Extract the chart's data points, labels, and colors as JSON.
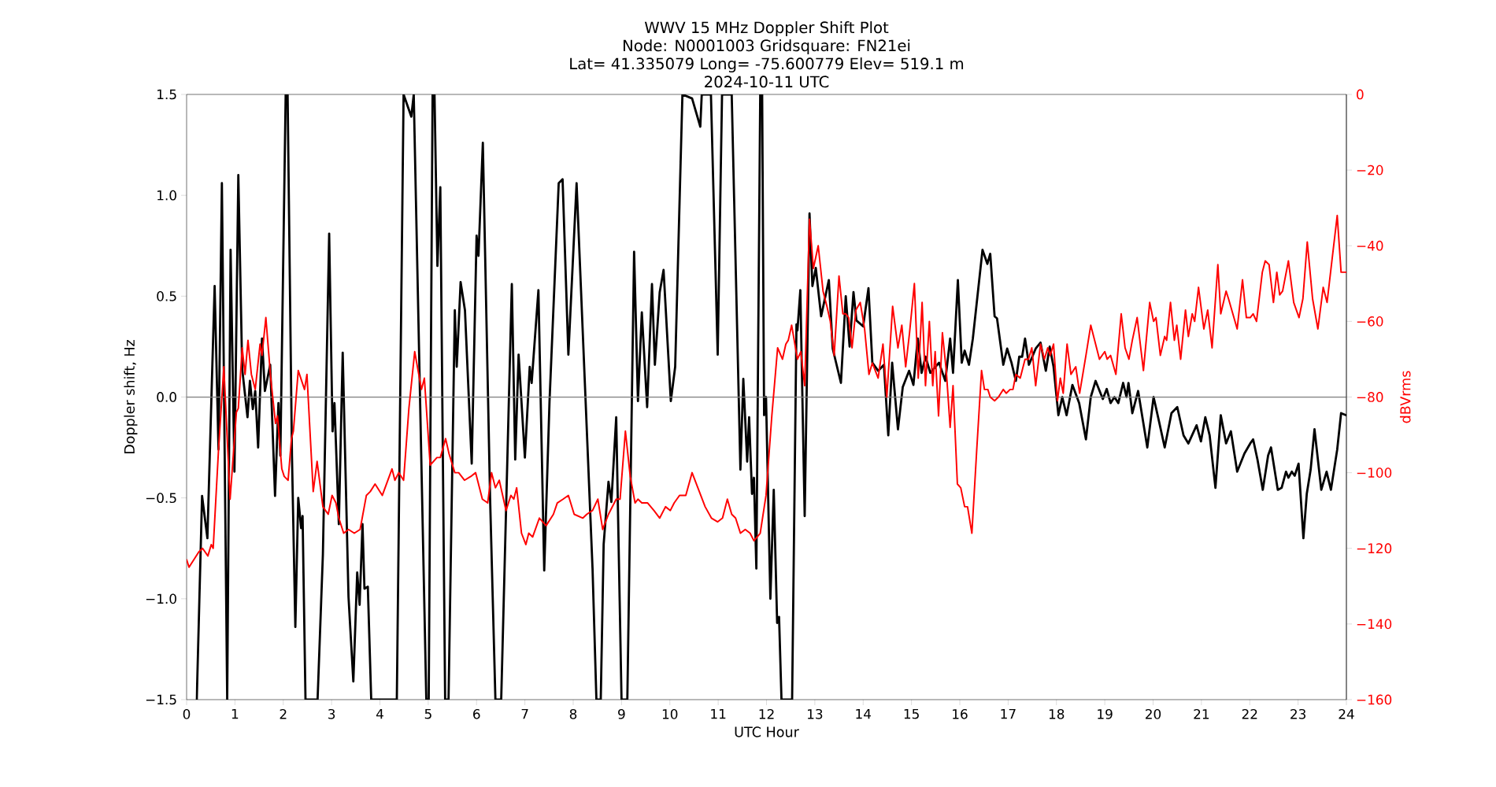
{
  "chart_data": {
    "type": "line",
    "title": "WWV 15 MHz Doppler Shift Plot",
    "subtitle": "Node:  N0001003     Gridsquare:  FN21ei",
    "annotations": [
      "Lat= 41.335079    Long= -75.600779    Elev= 519.1 m",
      "2024-10-11  UTC"
    ],
    "xlabel": "UTC Hour",
    "ylabel": "Doppler shift, Hz",
    "y2label": "dBVrms",
    "xlim": [
      0,
      24
    ],
    "xticks": [
      0,
      1,
      2,
      3,
      4,
      5,
      6,
      7,
      8,
      9,
      10,
      11,
      12,
      13,
      14,
      15,
      16,
      17,
      18,
      19,
      20,
      21,
      22,
      23,
      24
    ],
    "ylim": [
      -1.5,
      1.5
    ],
    "yticks": [
      {
        "value": -1.5,
        "label": "−1.5"
      },
      {
        "value": -1.0,
        "label": "−1.0"
      },
      {
        "value": -0.5,
        "label": "−0.5"
      },
      {
        "value": 0,
        "label": "0.0"
      },
      {
        "value": 0.5,
        "label": "0.5"
      },
      {
        "value": 1.0,
        "label": "1.0"
      },
      {
        "value": 1.5,
        "label": "1.5"
      }
    ],
    "y2lim": [
      -160,
      0
    ],
    "y2ticks": [
      {
        "value": -160,
        "label": "−160"
      },
      {
        "value": -140,
        "label": "−140"
      },
      {
        "value": -120,
        "label": "−120"
      },
      {
        "value": -100,
        "label": "−100"
      },
      {
        "value": -80,
        "label": "−80"
      },
      {
        "value": -60,
        "label": "−60"
      },
      {
        "value": -40,
        "label": "−40"
      },
      {
        "value": -20,
        "label": "−20"
      },
      0
    ],
    "line_style": "solid",
    "ref_lines": [
      {
        "axis": "y",
        "value": 0,
        "color": "#808080"
      }
    ],
    "series": [
      {
        "color": "#000000",
        "x": [
          0.21,
          0.32,
          0.43,
          0.58,
          0.66,
          0.73,
          0.84,
          0.91,
          0.99,
          1.07,
          1.15,
          1.26,
          1.31,
          1.37,
          1.42,
          1.48,
          1.56,
          1.62,
          1.73,
          1.83,
          1.9,
          1.94,
          2.05,
          2.09,
          2.18,
          2.25,
          2.31,
          2.37,
          2.4,
          2.46,
          2.71,
          2.82,
          2.95,
          3.02,
          3.06,
          3.15,
          3.23,
          3.35,
          3.45,
          3.53,
          3.58,
          3.64,
          3.68,
          3.75,
          3.82,
          4.35,
          4.49,
          4.65,
          4.7,
          4.96,
          5.01,
          5.09,
          5.13,
          5.19,
          5.25,
          5.35,
          5.42,
          5.55,
          5.59,
          5.67,
          5.76,
          5.9,
          6.0,
          6.04,
          6.13,
          6.28,
          6.39,
          6.51,
          6.73,
          6.8,
          6.87,
          7.0,
          7.1,
          7.14,
          7.28,
          7.4,
          7.51,
          7.7,
          7.78,
          7.9,
          8.07,
          8.4,
          8.48,
          8.57,
          8.63,
          8.73,
          8.79,
          8.89,
          9.0,
          9.12,
          9.26,
          9.34,
          9.42,
          9.53,
          9.63,
          9.69,
          9.79,
          9.87,
          10.02,
          10.11,
          10.26,
          10.46,
          10.63,
          10.66,
          10.85,
          10.99,
          11.08,
          11.28,
          11.46,
          11.52,
          11.6,
          11.64,
          11.7,
          11.74,
          11.79,
          11.87,
          11.91,
          11.95,
          11.99,
          12.08,
          12.15,
          12.22,
          12.26,
          12.31,
          12.53,
          12.62,
          12.64,
          12.7,
          12.79,
          12.89,
          12.95,
          13.02,
          13.13,
          13.29,
          13.37,
          13.54,
          13.64,
          13.72,
          13.8,
          13.86,
          14.0,
          14.11,
          14.19,
          14.31,
          14.43,
          14.52,
          14.6,
          14.72,
          14.82,
          14.95,
          15.04,
          15.13,
          15.21,
          15.29,
          15.39,
          15.57,
          15.7,
          15.8,
          15.86,
          15.96,
          16.04,
          16.1,
          16.19,
          16.27,
          16.47,
          16.57,
          16.63,
          16.72,
          16.77,
          16.9,
          16.98,
          17.07,
          17.16,
          17.23,
          17.29,
          17.35,
          17.43,
          17.57,
          17.67,
          17.78,
          17.86,
          17.94,
          18.04,
          18.12,
          18.21,
          18.33,
          18.47,
          18.61,
          18.71,
          18.81,
          18.96,
          19.04,
          19.12,
          19.2,
          19.28,
          19.38,
          19.45,
          19.49,
          19.57,
          19.69,
          19.88,
          20.01,
          20.14,
          20.24,
          20.38,
          20.5,
          20.63,
          20.73,
          20.9,
          20.99,
          21.08,
          21.17,
          21.29,
          21.4,
          21.51,
          21.61,
          21.74,
          21.89,
          22.01,
          22.07,
          22.16,
          22.27,
          22.38,
          22.44,
          22.58,
          22.66,
          22.75,
          22.8,
          22.87,
          22.93,
          23.01,
          23.11,
          23.18,
          23.26,
          23.34,
          23.48,
          23.59,
          23.68,
          23.81,
          23.89,
          23.99
        ],
        "values": [
          -1.5,
          -0.49,
          -0.7,
          0.55,
          -0.26,
          1.06,
          -1.5,
          0.73,
          -0.37,
          1.1,
          0.14,
          -0.1,
          0.08,
          -0.06,
          0.03,
          -0.25,
          0.29,
          0.03,
          0.16,
          -0.49,
          -0.03,
          -0.29,
          1.5,
          1.5,
          -0.29,
          -1.14,
          -0.5,
          -0.65,
          -0.59,
          -1.5,
          -1.5,
          -0.78,
          0.81,
          -0.17,
          -0.03,
          -0.63,
          0.22,
          -0.99,
          -1.41,
          -0.87,
          -1.03,
          -0.63,
          -0.95,
          -0.94,
          -1.5,
          -1.5,
          1.5,
          1.39,
          1.5,
          -1.5,
          -1.5,
          1.5,
          1.5,
          0.65,
          1.04,
          -1.5,
          -1.5,
          0.43,
          0.15,
          0.57,
          0.43,
          -0.33,
          0.8,
          0.7,
          1.26,
          -0.5,
          -1.5,
          -1.5,
          0.56,
          -0.31,
          0.21,
          -0.3,
          0.15,
          0.07,
          0.53,
          -0.86,
          -0.02,
          1.06,
          1.08,
          0.21,
          1.06,
          -0.85,
          -1.5,
          -1.5,
          -0.73,
          -0.42,
          -0.52,
          -0.1,
          -1.5,
          -1.5,
          0.72,
          -0.02,
          0.42,
          -0.05,
          0.56,
          0.16,
          0.52,
          0.63,
          -0.02,
          0.15,
          1.5,
          1.48,
          1.34,
          1.5,
          1.5,
          0.21,
          1.5,
          1.5,
          -0.36,
          0.09,
          -0.32,
          -0.1,
          -0.48,
          -0.4,
          -0.85,
          1.5,
          1.5,
          -0.09,
          0.0,
          -1.0,
          -0.46,
          -1.12,
          -1.09,
          -1.5,
          -1.5,
          0.36,
          0.33,
          0.53,
          -0.59,
          0.91,
          0.55,
          0.64,
          0.4,
          0.58,
          0.24,
          0.07,
          0.5,
          0.25,
          0.52,
          0.38,
          0.35,
          0.54,
          0.17,
          0.13,
          0.16,
          -0.19,
          0.17,
          -0.16,
          0.05,
          0.13,
          0.06,
          0.29,
          0.12,
          0.2,
          0.12,
          0.17,
          0.08,
          0.29,
          0.12,
          0.58,
          0.17,
          0.23,
          0.16,
          0.29,
          0.73,
          0.66,
          0.71,
          0.4,
          0.39,
          0.16,
          0.24,
          0.17,
          0.08,
          0.2,
          0.2,
          0.29,
          0.16,
          0.24,
          0.27,
          0.13,
          0.25,
          0.15,
          -0.09,
          0.0,
          -0.09,
          0.06,
          -0.03,
          -0.21,
          0.0,
          0.08,
          -0.01,
          0.04,
          -0.03,
          0.0,
          -0.03,
          0.07,
          0.0,
          0.07,
          -0.08,
          0.03,
          -0.25,
          0.0,
          -0.14,
          -0.25,
          -0.08,
          -0.05,
          -0.19,
          -0.23,
          -0.14,
          -0.22,
          -0.1,
          -0.19,
          -0.45,
          -0.09,
          -0.23,
          -0.17,
          -0.37,
          -0.28,
          -0.23,
          -0.21,
          -0.31,
          -0.46,
          -0.29,
          -0.25,
          -0.46,
          -0.45,
          -0.37,
          -0.4,
          -0.37,
          -0.39,
          -0.33,
          -0.7,
          -0.48,
          -0.36,
          -0.16,
          -0.46,
          -0.37,
          -0.46,
          -0.26,
          -0.08,
          -0.09
        ]
      },
      {
        "color": "#ff0000",
        "axis": "y2",
        "x": [
          0.0,
          0.05,
          0.25,
          0.33,
          0.44,
          0.51,
          0.55,
          0.66,
          0.77,
          0.9,
          1.03,
          1.07,
          1.15,
          1.21,
          1.27,
          1.34,
          1.42,
          1.52,
          1.56,
          1.64,
          1.74,
          1.84,
          1.88,
          1.97,
          2.02,
          2.1,
          2.17,
          2.21,
          2.31,
          2.44,
          2.49,
          2.62,
          2.7,
          2.82,
          2.93,
          3.01,
          3.09,
          3.15,
          3.25,
          3.35,
          3.47,
          3.59,
          3.72,
          3.8,
          3.9,
          4.05,
          4.25,
          4.31,
          4.39,
          4.49,
          4.6,
          4.72,
          4.79,
          4.86,
          4.92,
          5.04,
          5.18,
          5.25,
          5.36,
          5.43,
          5.55,
          5.63,
          5.75,
          5.88,
          5.98,
          6.12,
          6.23,
          6.31,
          6.39,
          6.47,
          6.61,
          6.71,
          6.77,
          6.83,
          6.93,
          7.02,
          7.08,
          7.16,
          7.3,
          7.44,
          7.59,
          7.67,
          7.79,
          7.9,
          8.02,
          8.2,
          8.28,
          8.4,
          8.51,
          8.61,
          8.73,
          8.89,
          8.97,
          9.08,
          9.18,
          9.28,
          9.34,
          9.42,
          9.54,
          9.67,
          9.79,
          9.91,
          10.01,
          10.09,
          10.2,
          10.25,
          10.33,
          10.46,
          10.58,
          10.73,
          10.86,
          10.99,
          11.09,
          11.19,
          11.28,
          11.36,
          11.46,
          11.56,
          11.66,
          11.74,
          11.87,
          11.99,
          12.11,
          12.23,
          12.33,
          12.4,
          12.45,
          12.52,
          12.64,
          12.71,
          12.79,
          12.89,
          12.97,
          13.07,
          13.17,
          13.25,
          13.32,
          13.4,
          13.5,
          13.58,
          13.64,
          13.7,
          13.77,
          13.85,
          13.94,
          14.03,
          14.12,
          14.19,
          14.31,
          14.41,
          14.49,
          14.61,
          14.72,
          14.8,
          14.88,
          14.96,
          15.06,
          15.14,
          15.22,
          15.29,
          15.37,
          15.44,
          15.49,
          15.56,
          15.64,
          15.72,
          15.8,
          15.86,
          15.95,
          16.02,
          16.1,
          16.16,
          16.25,
          16.35,
          16.45,
          16.51,
          16.58,
          16.63,
          16.72,
          16.8,
          16.9,
          16.96,
          17.04,
          17.1,
          17.16,
          17.25,
          17.35,
          17.42,
          17.49,
          17.57,
          17.67,
          17.75,
          17.82,
          17.87,
          17.94,
          18.02,
          18.08,
          18.14,
          18.22,
          18.3,
          18.4,
          18.48,
          18.61,
          18.71,
          18.81,
          18.89,
          19.0,
          19.05,
          19.12,
          19.23,
          19.34,
          19.42,
          19.5,
          19.57,
          19.67,
          19.8,
          19.93,
          20.01,
          20.06,
          20.15,
          20.24,
          20.28,
          20.36,
          20.44,
          20.49,
          20.57,
          20.67,
          20.73,
          20.81,
          20.86,
          20.94,
          21.05,
          21.13,
          21.22,
          21.34,
          21.4,
          21.51,
          21.56,
          21.65,
          21.74,
          21.85,
          21.93,
          22.01,
          22.07,
          22.14,
          22.26,
          22.32,
          22.4,
          22.49,
          22.56,
          22.62,
          22.68,
          22.8,
          22.91,
          23.02,
          23.1,
          23.19,
          23.3,
          23.41,
          23.52,
          23.6,
          23.7,
          23.81,
          23.89,
          24.0
        ],
        "values": [
          -123,
          -125,
          -121,
          -120,
          -122,
          -119,
          -120,
          -94,
          -72,
          -107,
          -84,
          -83,
          -67,
          -74,
          -65,
          -74,
          -78,
          -66,
          -69,
          -59,
          -75,
          -87,
          -85,
          -99,
          -101,
          -102,
          -91,
          -89,
          -73,
          -78,
          -74,
          -105,
          -97,
          -109,
          -111,
          -106,
          -108,
          -112,
          -116,
          -115,
          -116,
          -115,
          -106,
          -105,
          -103,
          -106,
          -99,
          -102,
          -100,
          -102,
          -83,
          -68,
          -73,
          -78,
          -75,
          -98,
          -96,
          -96,
          -91,
          -95,
          -100,
          -100,
          -102,
          -101,
          -100,
          -107,
          -108,
          -100,
          -104,
          -102,
          -110,
          -106,
          -107,
          -104,
          -116,
          -119,
          -116,
          -117,
          -112,
          -114,
          -111,
          -108,
          -107,
          -106,
          -111,
          -112,
          -111,
          -110,
          -107,
          -115,
          -111,
          -107,
          -107,
          -89,
          -101,
          -108,
          -107,
          -108,
          -108,
          -110,
          -112,
          -109,
          -110,
          -108,
          -106,
          -106,
          -106,
          -100,
          -104,
          -109,
          -112,
          -113,
          -112,
          -107,
          -111,
          -112,
          -116,
          -115,
          -116,
          -118,
          -116,
          -106,
          -85,
          -67,
          -70,
          -66,
          -65,
          -61,
          -70,
          -68,
          -77,
          -33,
          -46,
          -40,
          -52,
          -56,
          -60,
          -69,
          -48,
          -58,
          -58,
          -59,
          -67,
          -57,
          -55,
          -62,
          -74,
          -71,
          -75,
          -66,
          -80,
          -56,
          -67,
          -61,
          -72,
          -63,
          -50,
          -75,
          -55,
          -77,
          -60,
          -77,
          -68,
          -85,
          -63,
          -73,
          -88,
          -77,
          -103,
          -104,
          -109,
          -109,
          -116,
          -94,
          -73,
          -78,
          -78,
          -80,
          -81,
          -80,
          -78,
          -79,
          -78,
          -78,
          -74,
          -75,
          -70,
          -70,
          -67,
          -77,
          -66,
          -70,
          -67,
          -69,
          -66,
          -81,
          -75,
          -79,
          -66,
          -74,
          -72,
          -79,
          -69,
          -61,
          -66,
          -70,
          -68,
          -70,
          -69,
          -74,
          -58,
          -67,
          -70,
          -65,
          -59,
          -73,
          -55,
          -60,
          -59,
          -69,
          -64,
          -65,
          -55,
          -65,
          -61,
          -70,
          -57,
          -64,
          -58,
          -60,
          -51,
          -62,
          -57,
          -67,
          -45,
          -58,
          -52,
          -54,
          -58,
          -62,
          -49,
          -59,
          -59,
          -58,
          -60,
          -47,
          -44,
          -45,
          -55,
          -47,
          -53,
          -52,
          -44,
          -55,
          -59,
          -54,
          -39,
          -54,
          -62,
          -51,
          -55,
          -44,
          -32,
          -47,
          -47
        ]
      }
    ]
  }
}
